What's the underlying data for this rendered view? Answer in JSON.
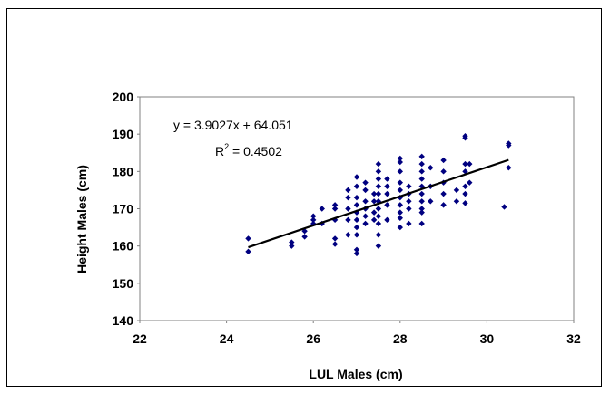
{
  "chart_data": {
    "type": "scatter",
    "title": "",
    "xlabel": "LUL Males (cm)",
    "ylabel": "Height  Males (cm)",
    "xlim": [
      22,
      32
    ],
    "ylim": [
      140,
      200
    ],
    "xticks": [
      22,
      24,
      26,
      28,
      30,
      32
    ],
    "yticks": [
      140,
      150,
      160,
      170,
      180,
      190,
      200
    ],
    "grid": false,
    "marker_color": "#000080",
    "series": [
      {
        "x": [
          24.5,
          24.5,
          25.5,
          25.5,
          25.8,
          25.8,
          26.0,
          26.0,
          26.0,
          26.2,
          26.2,
          26.5,
          26.5,
          26.5,
          26.5,
          26.5,
          26.8,
          26.8,
          26.8,
          26.8,
          26.8,
          27.0,
          27.0,
          27.0,
          27.0,
          27.0,
          27.0,
          27.0,
          27.0,
          27.0,
          27.0,
          27.2,
          27.2,
          27.2,
          27.2,
          27.2,
          27.2,
          27.4,
          27.4,
          27.4,
          27.4,
          27.5,
          27.5,
          27.5,
          27.5,
          27.5,
          27.5,
          27.5,
          27.5,
          27.5,
          27.5,
          27.5,
          27.7,
          27.7,
          27.7,
          27.7,
          27.7,
          28.0,
          28.0,
          28.0,
          28.0,
          28.0,
          28.0,
          28.0,
          28.0,
          28.0,
          28.0,
          28.2,
          28.2,
          28.2,
          28.2,
          28.2,
          28.5,
          28.5,
          28.5,
          28.5,
          28.5,
          28.5,
          28.5,
          28.5,
          28.5,
          28.5,
          28.7,
          28.7,
          28.7,
          29.0,
          29.0,
          29.0,
          29.0,
          29.0,
          29.3,
          29.3,
          29.5,
          29.5,
          29.5,
          29.5,
          29.5,
          29.5,
          29.5,
          29.6,
          29.6,
          30.4,
          30.5,
          30.5,
          30.5
        ],
        "y": [
          162,
          158.5,
          161,
          160,
          164,
          162.5,
          168,
          167,
          166,
          170,
          166,
          171,
          170,
          167,
          162,
          160.5,
          175,
          173,
          170,
          167,
          163,
          178.5,
          176,
          173,
          171,
          169,
          167,
          165,
          163,
          159,
          158,
          177,
          175,
          172,
          170,
          168,
          166,
          174,
          172,
          169,
          167,
          182,
          180,
          178,
          176,
          174,
          172,
          170,
          168,
          166,
          163,
          160,
          178,
          176,
          174,
          171,
          167,
          183.5,
          182.5,
          180,
          177,
          175,
          173,
          171,
          169,
          167.5,
          165,
          176,
          174,
          172,
          170,
          166,
          184,
          182,
          180,
          178,
          176,
          174,
          172,
          170,
          169,
          166,
          181,
          176,
          172,
          183,
          180,
          177,
          174,
          171,
          175,
          172,
          189.5,
          189,
          182,
          180,
          176,
          174,
          171.5,
          182,
          177,
          170.5,
          187.5,
          187,
          181
        ]
      }
    ],
    "trendline": {
      "type": "linear",
      "slope": 3.9027,
      "intercept": 64.051,
      "x_range": [
        24.5,
        30.5
      ],
      "color": "#000000"
    },
    "annotations": {
      "equation": "y = 3.9027x + 64.051",
      "r2_label": "R",
      "r2_superscript": "2",
      "r2_value": " = 0.4502"
    }
  }
}
